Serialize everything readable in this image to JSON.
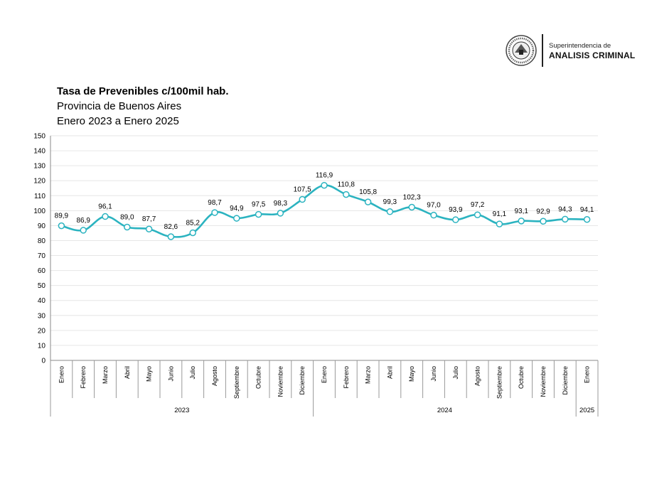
{
  "header": {
    "org_subtitle": "Superintendencia de",
    "org_name": "ANALISIS CRIMINAL",
    "logo_icon": "province-seal-icon"
  },
  "chart_data": {
    "type": "line",
    "title": "Tasa de Prevenibles c/100mil hab.",
    "subtitle": "Provincia de Buenos Aires",
    "period": "Enero 2023 a Enero 2025",
    "categories": [
      "Enero",
      "Febrero",
      "Marzo",
      "Abril",
      "Mayo",
      "Junio",
      "Julio",
      "Agosto",
      "Septiembre",
      "Octubre",
      "Noviembre",
      "Diciembre",
      "Enero",
      "Febrero",
      "Marzo",
      "Abril",
      "Mayo",
      "Junio",
      "Julio",
      "Agosto",
      "Septiembre",
      "Octubre",
      "Noviembre",
      "Diciembre",
      "Enero"
    ],
    "values": [
      89.9,
      86.9,
      96.1,
      89.0,
      87.7,
      82.6,
      85.2,
      98.7,
      94.9,
      97.5,
      98.3,
      107.5,
      116.9,
      110.8,
      105.8,
      99.3,
      102.3,
      97.0,
      93.9,
      97.2,
      91.1,
      93.1,
      92.9,
      94.3,
      94.1
    ],
    "data_labels": [
      "89,9",
      "86,9",
      "96,1",
      "89,0",
      "87,7",
      "82,6",
      "85,2",
      "98,7",
      "94,9",
      "97,5",
      "98,3",
      "107,5",
      "116,9",
      "110,8",
      "105,8",
      "99,3",
      "102,3",
      "97,0",
      "93,9",
      "97,2",
      "91,1",
      "93,1",
      "92,9",
      "94,3",
      "94,1"
    ],
    "groups": [
      {
        "label": "2023",
        "count": 12
      },
      {
        "label": "2024",
        "count": 12
      },
      {
        "label": "2025",
        "count": 1
      }
    ],
    "ylim": [
      0,
      150
    ],
    "yticks": [
      0,
      10,
      20,
      30,
      40,
      50,
      60,
      70,
      80,
      90,
      100,
      110,
      120,
      130,
      140,
      150
    ],
    "grid": true,
    "line_color": "#2bb3c0",
    "marker_fill": "#ffffff",
    "xlabel": "",
    "ylabel": ""
  }
}
